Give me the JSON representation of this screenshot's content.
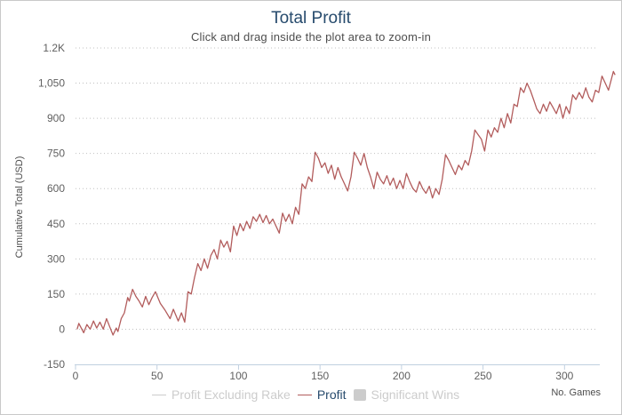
{
  "chart_data": {
    "type": "line",
    "title": "Total Profit",
    "subtitle": "Click and drag inside the plot area to zoom-in",
    "xlabel": "No. Games",
    "ylabel": "Cumulative Total (USD)",
    "xlim": [
      0,
      320
    ],
    "ylim": [
      -150,
      1200
    ],
    "x_ticks": [
      0,
      50,
      100,
      150,
      200,
      250,
      300
    ],
    "x_tick_labels": [
      "0",
      "50",
      "100",
      "150",
      "200",
      "250",
      "300"
    ],
    "y_ticks": [
      -150,
      0,
      150,
      300,
      450,
      600,
      750,
      900,
      1050,
      1200
    ],
    "y_tick_labels": [
      "-150",
      "0",
      "150",
      "300",
      "450",
      "600",
      "750",
      "900",
      "1,050",
      "1.2K"
    ],
    "grid": "horizontal-dotted",
    "legend_position": "bottom",
    "legend": [
      {
        "name": "Profit Excluding Rake",
        "kind": "line",
        "state": "hidden",
        "color": "#cccccc"
      },
      {
        "name": "Profit",
        "kind": "line",
        "state": "visible",
        "color": "#b25c5c"
      },
      {
        "name": "Significant Wins",
        "kind": "area",
        "state": "hidden",
        "color": "#cccccc"
      }
    ],
    "series": [
      {
        "name": "Profit",
        "color": "#b25c5c",
        "points": [
          [
            1,
            0
          ],
          [
            2,
            25
          ],
          [
            5,
            -15
          ],
          [
            7,
            20
          ],
          [
            9,
            0
          ],
          [
            11,
            35
          ],
          [
            13,
            5
          ],
          [
            15,
            30
          ],
          [
            17,
            0
          ],
          [
            19,
            45
          ],
          [
            21,
            10
          ],
          [
            23,
            -25
          ],
          [
            25,
            5
          ],
          [
            26,
            -10
          ],
          [
            28,
            45
          ],
          [
            30,
            70
          ],
          [
            32,
            135
          ],
          [
            33,
            120
          ],
          [
            35,
            170
          ],
          [
            37,
            140
          ],
          [
            39,
            120
          ],
          [
            41,
            95
          ],
          [
            43,
            140
          ],
          [
            45,
            105
          ],
          [
            47,
            135
          ],
          [
            49,
            160
          ],
          [
            52,
            110
          ],
          [
            55,
            80
          ],
          [
            58,
            45
          ],
          [
            60,
            85
          ],
          [
            63,
            35
          ],
          [
            65,
            70
          ],
          [
            67,
            30
          ],
          [
            69,
            160
          ],
          [
            71,
            150
          ],
          [
            73,
            220
          ],
          [
            75,
            280
          ],
          [
            77,
            250
          ],
          [
            79,
            300
          ],
          [
            81,
            260
          ],
          [
            83,
            315
          ],
          [
            85,
            340
          ],
          [
            87,
            300
          ],
          [
            89,
            380
          ],
          [
            91,
            350
          ],
          [
            93,
            375
          ],
          [
            95,
            330
          ],
          [
            97,
            440
          ],
          [
            99,
            400
          ],
          [
            101,
            450
          ],
          [
            103,
            420
          ],
          [
            105,
            460
          ],
          [
            107,
            430
          ],
          [
            109,
            480
          ],
          [
            111,
            460
          ],
          [
            113,
            490
          ],
          [
            115,
            455
          ],
          [
            117,
            485
          ],
          [
            119,
            450
          ],
          [
            121,
            470
          ],
          [
            123,
            440
          ],
          [
            125,
            410
          ],
          [
            127,
            495
          ],
          [
            129,
            460
          ],
          [
            131,
            490
          ],
          [
            133,
            450
          ],
          [
            135,
            520
          ],
          [
            137,
            490
          ],
          [
            139,
            620
          ],
          [
            141,
            600
          ],
          [
            143,
            650
          ],
          [
            145,
            630
          ],
          [
            147,
            755
          ],
          [
            149,
            730
          ],
          [
            151,
            690
          ],
          [
            153,
            710
          ],
          [
            155,
            665
          ],
          [
            157,
            700
          ],
          [
            159,
            640
          ],
          [
            161,
            690
          ],
          [
            163,
            650
          ],
          [
            165,
            620
          ],
          [
            167,
            590
          ],
          [
            169,
            650
          ],
          [
            171,
            755
          ],
          [
            173,
            730
          ],
          [
            175,
            700
          ],
          [
            177,
            750
          ],
          [
            179,
            690
          ],
          [
            181,
            650
          ],
          [
            183,
            600
          ],
          [
            185,
            670
          ],
          [
            187,
            640
          ],
          [
            189,
            620
          ],
          [
            191,
            655
          ],
          [
            193,
            615
          ],
          [
            195,
            645
          ],
          [
            197,
            600
          ],
          [
            199,
            635
          ],
          [
            201,
            600
          ],
          [
            203,
            665
          ],
          [
            205,
            630
          ],
          [
            207,
            600
          ],
          [
            209,
            585
          ],
          [
            211,
            630
          ],
          [
            213,
            600
          ],
          [
            215,
            580
          ],
          [
            217,
            610
          ],
          [
            219,
            560
          ],
          [
            221,
            600
          ],
          [
            223,
            575
          ],
          [
            225,
            640
          ],
          [
            227,
            745
          ],
          [
            229,
            720
          ],
          [
            231,
            690
          ],
          [
            233,
            660
          ],
          [
            235,
            700
          ],
          [
            237,
            680
          ],
          [
            239,
            720
          ],
          [
            241,
            700
          ],
          [
            243,
            760
          ],
          [
            245,
            850
          ],
          [
            247,
            830
          ],
          [
            249,
            810
          ],
          [
            251,
            760
          ],
          [
            253,
            850
          ],
          [
            255,
            820
          ],
          [
            257,
            860
          ],
          [
            259,
            840
          ],
          [
            261,
            900
          ],
          [
            263,
            860
          ],
          [
            265,
            920
          ],
          [
            267,
            880
          ],
          [
            269,
            960
          ],
          [
            271,
            950
          ],
          [
            273,
            1030
          ],
          [
            275,
            1010
          ],
          [
            277,
            1050
          ],
          [
            279,
            1020
          ],
          [
            281,
            980
          ],
          [
            283,
            940
          ],
          [
            285,
            920
          ],
          [
            287,
            960
          ],
          [
            289,
            930
          ],
          [
            291,
            970
          ],
          [
            293,
            945
          ],
          [
            295,
            920
          ],
          [
            297,
            960
          ],
          [
            299,
            900
          ],
          [
            301,
            950
          ],
          [
            303,
            920
          ],
          [
            305,
            1000
          ],
          [
            307,
            980
          ],
          [
            309,
            1010
          ],
          [
            311,
            985
          ],
          [
            313,
            1030
          ],
          [
            315,
            990
          ],
          [
            317,
            970
          ],
          [
            319,
            1020
          ],
          [
            321,
            1010
          ],
          [
            323,
            1080
          ],
          [
            327,
            1020
          ],
          [
            330,
            1100
          ],
          [
            331,
            1085
          ]
        ]
      }
    ]
  }
}
